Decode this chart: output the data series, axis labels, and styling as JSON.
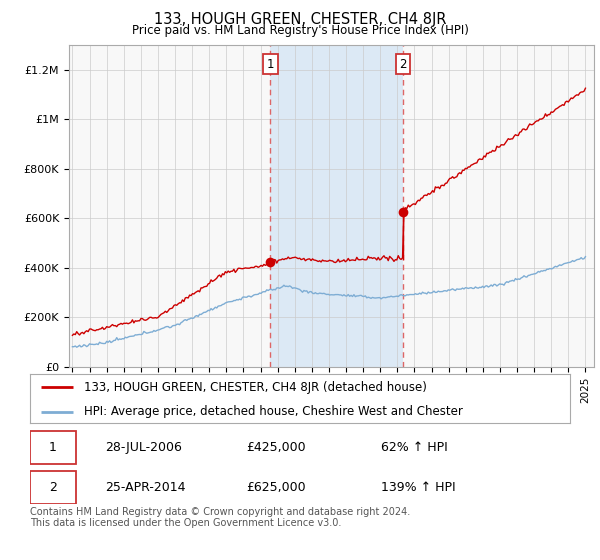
{
  "title": "133, HOUGH GREEN, CHESTER, CH4 8JR",
  "subtitle": "Price paid vs. HM Land Registry's House Price Index (HPI)",
  "ylim": [
    0,
    1300000
  ],
  "yticks": [
    0,
    200000,
    400000,
    600000,
    800000,
    1000000,
    1200000
  ],
  "ytick_labels": [
    "£0",
    "£200K",
    "£400K",
    "£600K",
    "£800K",
    "£1M",
    "£1.2M"
  ],
  "sale1_year": 2006.57,
  "sale1_price": 425000,
  "sale2_year": 2014.32,
  "sale2_price": 625000,
  "red_line_color": "#cc0000",
  "blue_line_color": "#7eadd4",
  "shade_color": "#dce9f5",
  "vline_color": "#dd6666",
  "background_color": "#ffffff",
  "plot_bg_color": "#f8f8f8",
  "grid_color": "#cccccc",
  "legend_label_red": "133, HOUGH GREEN, CHESTER, CH4 8JR (detached house)",
  "legend_label_blue": "HPI: Average price, detached house, Cheshire West and Chester",
  "table_row1": [
    "1",
    "28-JUL-2006",
    "£425,000",
    "62% ↑ HPI"
  ],
  "table_row2": [
    "2",
    "25-APR-2014",
    "£625,000",
    "139% ↑ HPI"
  ],
  "footer": "Contains HM Land Registry data © Crown copyright and database right 2024.\nThis data is licensed under the Open Government Licence v3.0."
}
